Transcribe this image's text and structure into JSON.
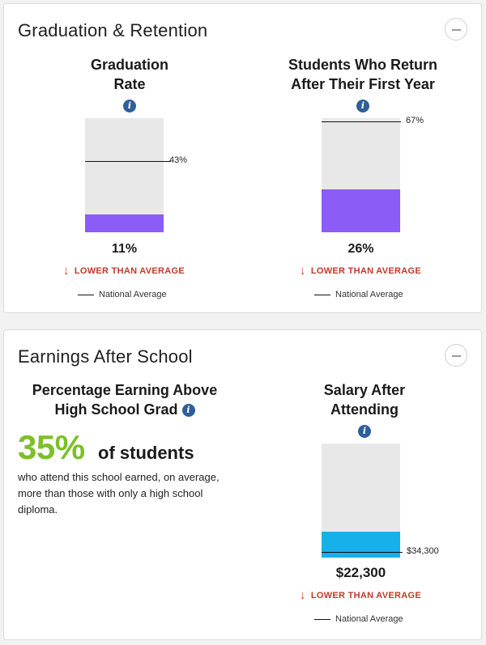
{
  "graduation": {
    "title": "Graduation & Retention",
    "collapse_icon": "minus-icon",
    "grad_rate": {
      "title_line1": "Graduation",
      "title_line2": "Rate",
      "info_icon": "info-icon",
      "value": "11%",
      "average_label": "43%",
      "status": "LOWER THAN AVERAGE",
      "legend": "National Average",
      "fill_fraction": 0.11,
      "average_fraction": 0.43,
      "fill_color": "#8b5cf6"
    },
    "retention": {
      "title_line1": "Students Who Return",
      "title_line2": "After Their First Year",
      "info_icon": "info-icon",
      "value": "26%",
      "average_label": "67%",
      "status": "LOWER THAN AVERAGE",
      "legend": "National Average",
      "fill_fraction": 0.26,
      "average_fraction": 0.67,
      "fill_color": "#8b5cf6"
    }
  },
  "earnings": {
    "title": "Earnings After School",
    "collapse_icon": "minus-icon",
    "above_hs": {
      "title_line1": "Percentage Earning Above",
      "title_line2": "High School Grad",
      "info_icon": "info-icon",
      "big_value": "35%",
      "big_suffix": "of students",
      "description": "who attend this school earned, on average, more than those with only a high school diploma.",
      "value_color": "#7dbf2a"
    },
    "salary": {
      "title_line1": "Salary After",
      "title_line2": "Attending",
      "info_icon": "info-icon",
      "value": "$22,300",
      "average_label": "$34,300",
      "status": "LOWER THAN AVERAGE",
      "legend": "National Average",
      "fill_fraction": 0.22,
      "average_fraction": 0.34,
      "fill_color": "#18b0ea"
    }
  },
  "colors": {
    "status_red": "#c0392b",
    "info_blue": "#2f5f9a"
  }
}
